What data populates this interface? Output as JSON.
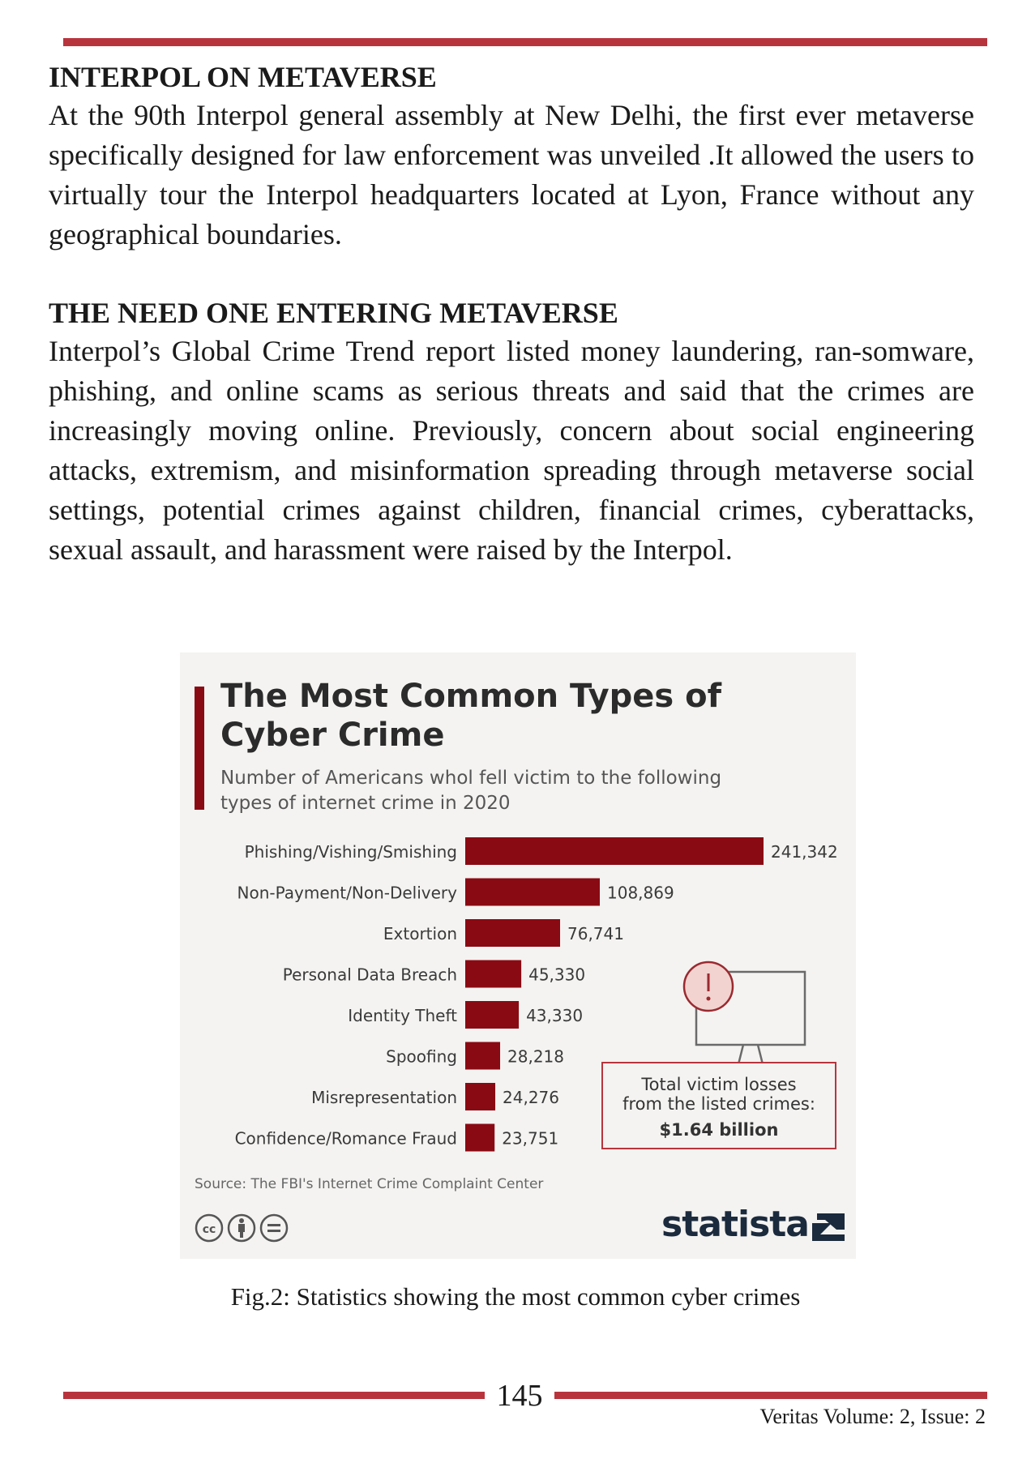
{
  "section1": {
    "heading": "INTERPOL ON METAVERSE",
    "body": "At the 90th Interpol general assembly at New Delhi, the first ever metaverse specifically designed for law enforcement was unveiled .It allowed the users to virtually tour the Interpol headquarters  located at Lyon, France without any geographical boundaries."
  },
  "section2": {
    "heading": "THE NEED ONE ENTERING METAVERSE",
    "body": "Interpol’s Global Crime Trend report listed money laundering, ran-somware, phishing, and online scams as serious threats and said that the crimes are increasingly moving online. Previously, concern about social engineering attacks, extremism, and misinformation spreading through metaverse social settings, potential crimes against children, financial crimes, cyberattacks, sexual assault, and harassment were raised by the Interpol."
  },
  "figure": {
    "caption": "Fig.2: Statistics showing the most common cyber crimes",
    "losses_line1": "Total victim losses",
    "losses_line2": "from the listed crimes:",
    "losses_value": "$1.64 billion",
    "source": "Source: The FBI's Internet Crime Complaint Center",
    "brand": "statista",
    "icons": [
      "cc-icon",
      "attribution-icon",
      "no-derivatives-icon",
      "computer-alert-icon",
      "statista-logo-icon"
    ],
    "bar_color": "#8a0a13",
    "accent_color": "#b8343d"
  },
  "chart_data": {
    "type": "bar",
    "orientation": "horizontal",
    "title": "The Most Common Types of Cyber Crime",
    "subtitle": "Number of Americans whol fell victim to the following types of internet crime in 2020",
    "categories": [
      "Phishing/Vishing/Smishing",
      "Non-Payment/Non-Delivery",
      "Extortion",
      "Personal Data Breach",
      "Identity Theft",
      "Spoofing",
      "Misrepresentation",
      "Confidence/Romance Fraud"
    ],
    "values": [
      241342,
      108869,
      76741,
      45330,
      43330,
      28218,
      24276,
      23751
    ],
    "value_labels": [
      "241,342",
      "108,869",
      "76,741",
      "45,330",
      "43,330",
      "28,218",
      "24,276",
      "23,751"
    ],
    "xlim": [
      0,
      241342
    ],
    "grid": false,
    "legend": "none"
  },
  "footer": {
    "page_number": "145",
    "journal": "Veritas Volume: 2, Issue: 2"
  }
}
